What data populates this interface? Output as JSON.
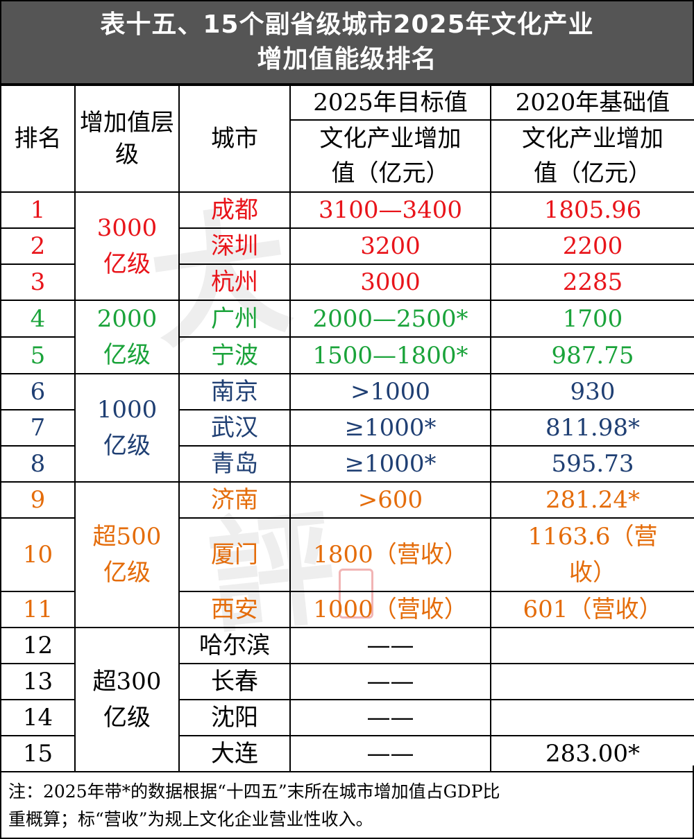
{
  "title": {
    "line1": "表十五、15个副省级城市2025年文化产业",
    "line2": "增加值能级排名"
  },
  "header": {
    "rank": "排名",
    "tier": "增加值层级",
    "city": "城市",
    "target_group": "2025年目标值",
    "target_metric": "文化产业增加值（亿元）",
    "base_group": "2020年基础值",
    "base_metric": "文化产业增加值（亿元）"
  },
  "tiers": [
    {
      "label": "3000亿级",
      "color": "#e8141a"
    },
    {
      "label": "2000亿级",
      "color": "#1aa33a"
    },
    {
      "label": "1000亿级",
      "color": "#1f3f73"
    },
    {
      "label": "超500亿级",
      "color": "#e46c0a"
    },
    {
      "label": "超300亿级",
      "color": "#000000"
    }
  ],
  "rows": [
    {
      "rank": "1",
      "city": "成都",
      "target": "3100—3400",
      "base": "1805.96"
    },
    {
      "rank": "2",
      "city": "深圳",
      "target": "3200",
      "base": "2200"
    },
    {
      "rank": "3",
      "city": "杭州",
      "target": "3000",
      "base": "2285"
    },
    {
      "rank": "4",
      "city": "广州",
      "target": "2000—2500*",
      "base": "1700"
    },
    {
      "rank": "5",
      "city": "宁波",
      "target": "1500—1800*",
      "base": "987.75"
    },
    {
      "rank": "6",
      "city": "南京",
      "target": ">1000",
      "base": "930"
    },
    {
      "rank": "7",
      "city": "武汉",
      "target": "≥1000*",
      "base": "811.98*"
    },
    {
      "rank": "8",
      "city": "青岛",
      "target": "≥1000*",
      "base": "595.73"
    },
    {
      "rank": "9",
      "city": "济南",
      "target": ">600",
      "base": "281.24*"
    },
    {
      "rank": "10",
      "city": "厦门",
      "target": "1800（营收）",
      "base": "1163.6（营收）"
    },
    {
      "rank": "11",
      "city": "西安",
      "target": "1000（营收）",
      "base": "601（营收）"
    },
    {
      "rank": "12",
      "city": "哈尔滨",
      "target": "——",
      "base": ""
    },
    {
      "rank": "13",
      "city": "长春",
      "target": "——",
      "base": ""
    },
    {
      "rank": "14",
      "city": "沈阳",
      "target": "——",
      "base": ""
    },
    {
      "rank": "15",
      "city": "大连",
      "target": "——",
      "base": "283.00*"
    }
  ],
  "note": {
    "line1": "注：2025年带*的数据根据“十四五”末所在城市增加值占GDP比",
    "line2": "重概算；标“营收”为规上文化企业营业性收入。"
  }
}
